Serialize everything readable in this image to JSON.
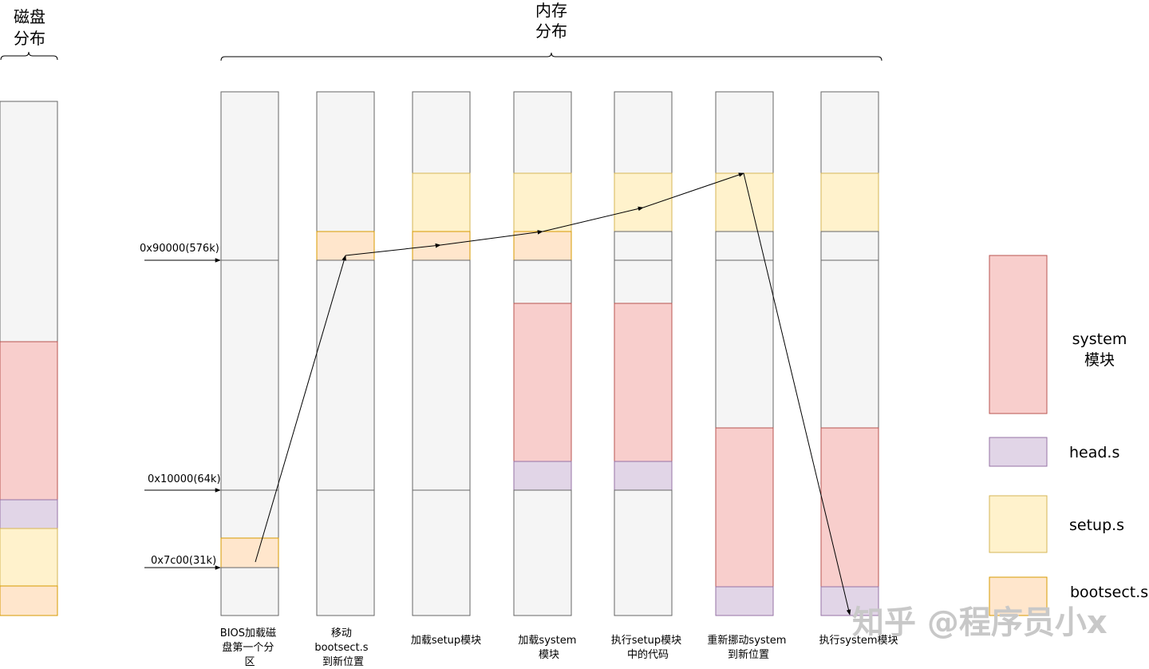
{
  "colors": {
    "empty": "#f5f5f5",
    "system": "#f8cecc",
    "head": "#e1d5e7",
    "setup": "#fff2cc",
    "bootsect": "#ffe6cc",
    "border": "#666666"
  },
  "disk": {
    "title_line1": "磁盘",
    "title_line2": "分布"
  },
  "memory": {
    "title_line1": "内存",
    "title_line2": "分布"
  },
  "addresses": [
    {
      "label": "0x90000(576k)"
    },
    {
      "label": "0x10000(64k)"
    },
    {
      "label": "0x7c00(31k)"
    }
  ],
  "steps": [
    {
      "caption": [
        "BIOS加载磁",
        "盘第一个分",
        "区"
      ]
    },
    {
      "caption": [
        "移动",
        "bootsect.s",
        "到新位置"
      ]
    },
    {
      "caption": [
        "加载setup模块"
      ]
    },
    {
      "caption": [
        "加载system",
        "模块"
      ]
    },
    {
      "caption": [
        "执行setup模块",
        "中的代码"
      ]
    },
    {
      "caption": [
        "重新挪动system",
        "到新位置"
      ]
    },
    {
      "caption": [
        "执行system模块"
      ]
    }
  ],
  "legend": [
    {
      "key": "system",
      "label_line1": "system",
      "label_line2": "模块"
    },
    {
      "key": "head",
      "label_line1": "head.s",
      "label_line2": ""
    },
    {
      "key": "setup",
      "label_line1": "setup.s",
      "label_line2": ""
    },
    {
      "key": "bootsect",
      "label_line1": "bootsect.s",
      "label_line2": ""
    }
  ],
  "watermark": "知乎 @程序员小x"
}
